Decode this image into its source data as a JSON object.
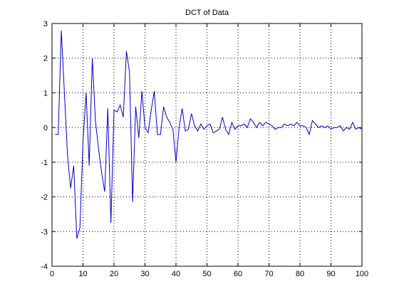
{
  "chart_data": {
    "type": "line",
    "title": "DCT of Data",
    "xlabel": "",
    "ylabel": "",
    "xlim": [
      0,
      100
    ],
    "ylim": [
      -4,
      3
    ],
    "xticks": [
      0,
      10,
      20,
      30,
      40,
      50,
      60,
      70,
      80,
      90,
      100
    ],
    "yticks": [
      -4,
      -3,
      -2,
      -1,
      0,
      1,
      2,
      3
    ],
    "grid": true,
    "grid_style": "dotted",
    "line_color": "#0000c8",
    "series": [
      {
        "name": "",
        "x": [
          1,
          2,
          3,
          4,
          5,
          6,
          7,
          8,
          9,
          10,
          11,
          12,
          13,
          14,
          15,
          16,
          17,
          18,
          19,
          20,
          21,
          22,
          23,
          24,
          25,
          26,
          27,
          28,
          29,
          30,
          31,
          32,
          33,
          34,
          35,
          36,
          37,
          38,
          39,
          40,
          41,
          42,
          43,
          44,
          45,
          46,
          47,
          48,
          49,
          50,
          51,
          52,
          53,
          54,
          55,
          56,
          57,
          58,
          59,
          60,
          61,
          62,
          63,
          64,
          65,
          66,
          67,
          68,
          69,
          70,
          71,
          72,
          73,
          74,
          75,
          76,
          77,
          78,
          79,
          80,
          81,
          82,
          83,
          84,
          85,
          86,
          87,
          88,
          89,
          90,
          91,
          92,
          93,
          94,
          95,
          96,
          97,
          98,
          99,
          100
        ],
        "y": [
          -0.2,
          -0.2,
          2.8,
          1.0,
          -0.8,
          -1.75,
          -1.1,
          -3.2,
          -2.9,
          -0.4,
          1.0,
          -1.1,
          2.0,
          0.2,
          -0.6,
          -1.3,
          -1.85,
          0.55,
          -2.75,
          0.5,
          0.45,
          0.65,
          0.3,
          2.2,
          1.6,
          -2.15,
          0.6,
          -0.3,
          1.05,
          0.0,
          -0.15,
          0.5,
          1.05,
          -0.2,
          -0.2,
          0.6,
          0.3,
          0.15,
          -0.05,
          -1.0,
          0.0,
          0.55,
          -0.1,
          -0.05,
          0.4,
          0.05,
          -0.1,
          0.1,
          -0.05,
          0.05,
          0.1,
          -0.15,
          -0.1,
          -0.05,
          0.3,
          -0.05,
          -0.2,
          0.15,
          -0.05,
          0.05,
          0.05,
          0.1,
          0.0,
          0.25,
          0.15,
          0.0,
          0.15,
          0.05,
          0.15,
          0.1,
          0.05,
          -0.05,
          0.0,
          0.0,
          0.1,
          0.05,
          0.1,
          0.05,
          0.15,
          0.05,
          0.05,
          0.0,
          -0.2,
          0.2,
          0.1,
          0.0,
          0.05,
          0.0,
          0.05,
          -0.05,
          0.0,
          0.0,
          0.05,
          -0.1,
          0.0,
          -0.05,
          0.15,
          -0.05,
          0.0,
          -0.05
        ]
      }
    ]
  }
}
